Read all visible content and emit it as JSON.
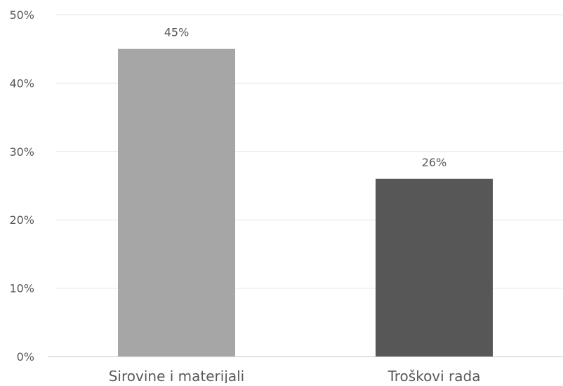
{
  "chart_data": {
    "type": "bar",
    "categories": [
      "Sirovine i materijali",
      "Troškovi rada"
    ],
    "values": [
      45,
      26
    ],
    "value_labels": [
      "45%",
      "26%"
    ],
    "ylim": [
      0,
      50
    ],
    "yticks": [
      0,
      10,
      20,
      30,
      40,
      50
    ],
    "ytick_labels": [
      "0%",
      "10%",
      "20%",
      "30%",
      "40%",
      "50%"
    ],
    "grid": true,
    "bar_colors": [
      "#a6a6a6",
      "#575757"
    ],
    "grid_color": "#e6e6e6",
    "axis_color": "#d9d9d9",
    "text_color": "#595959"
  }
}
